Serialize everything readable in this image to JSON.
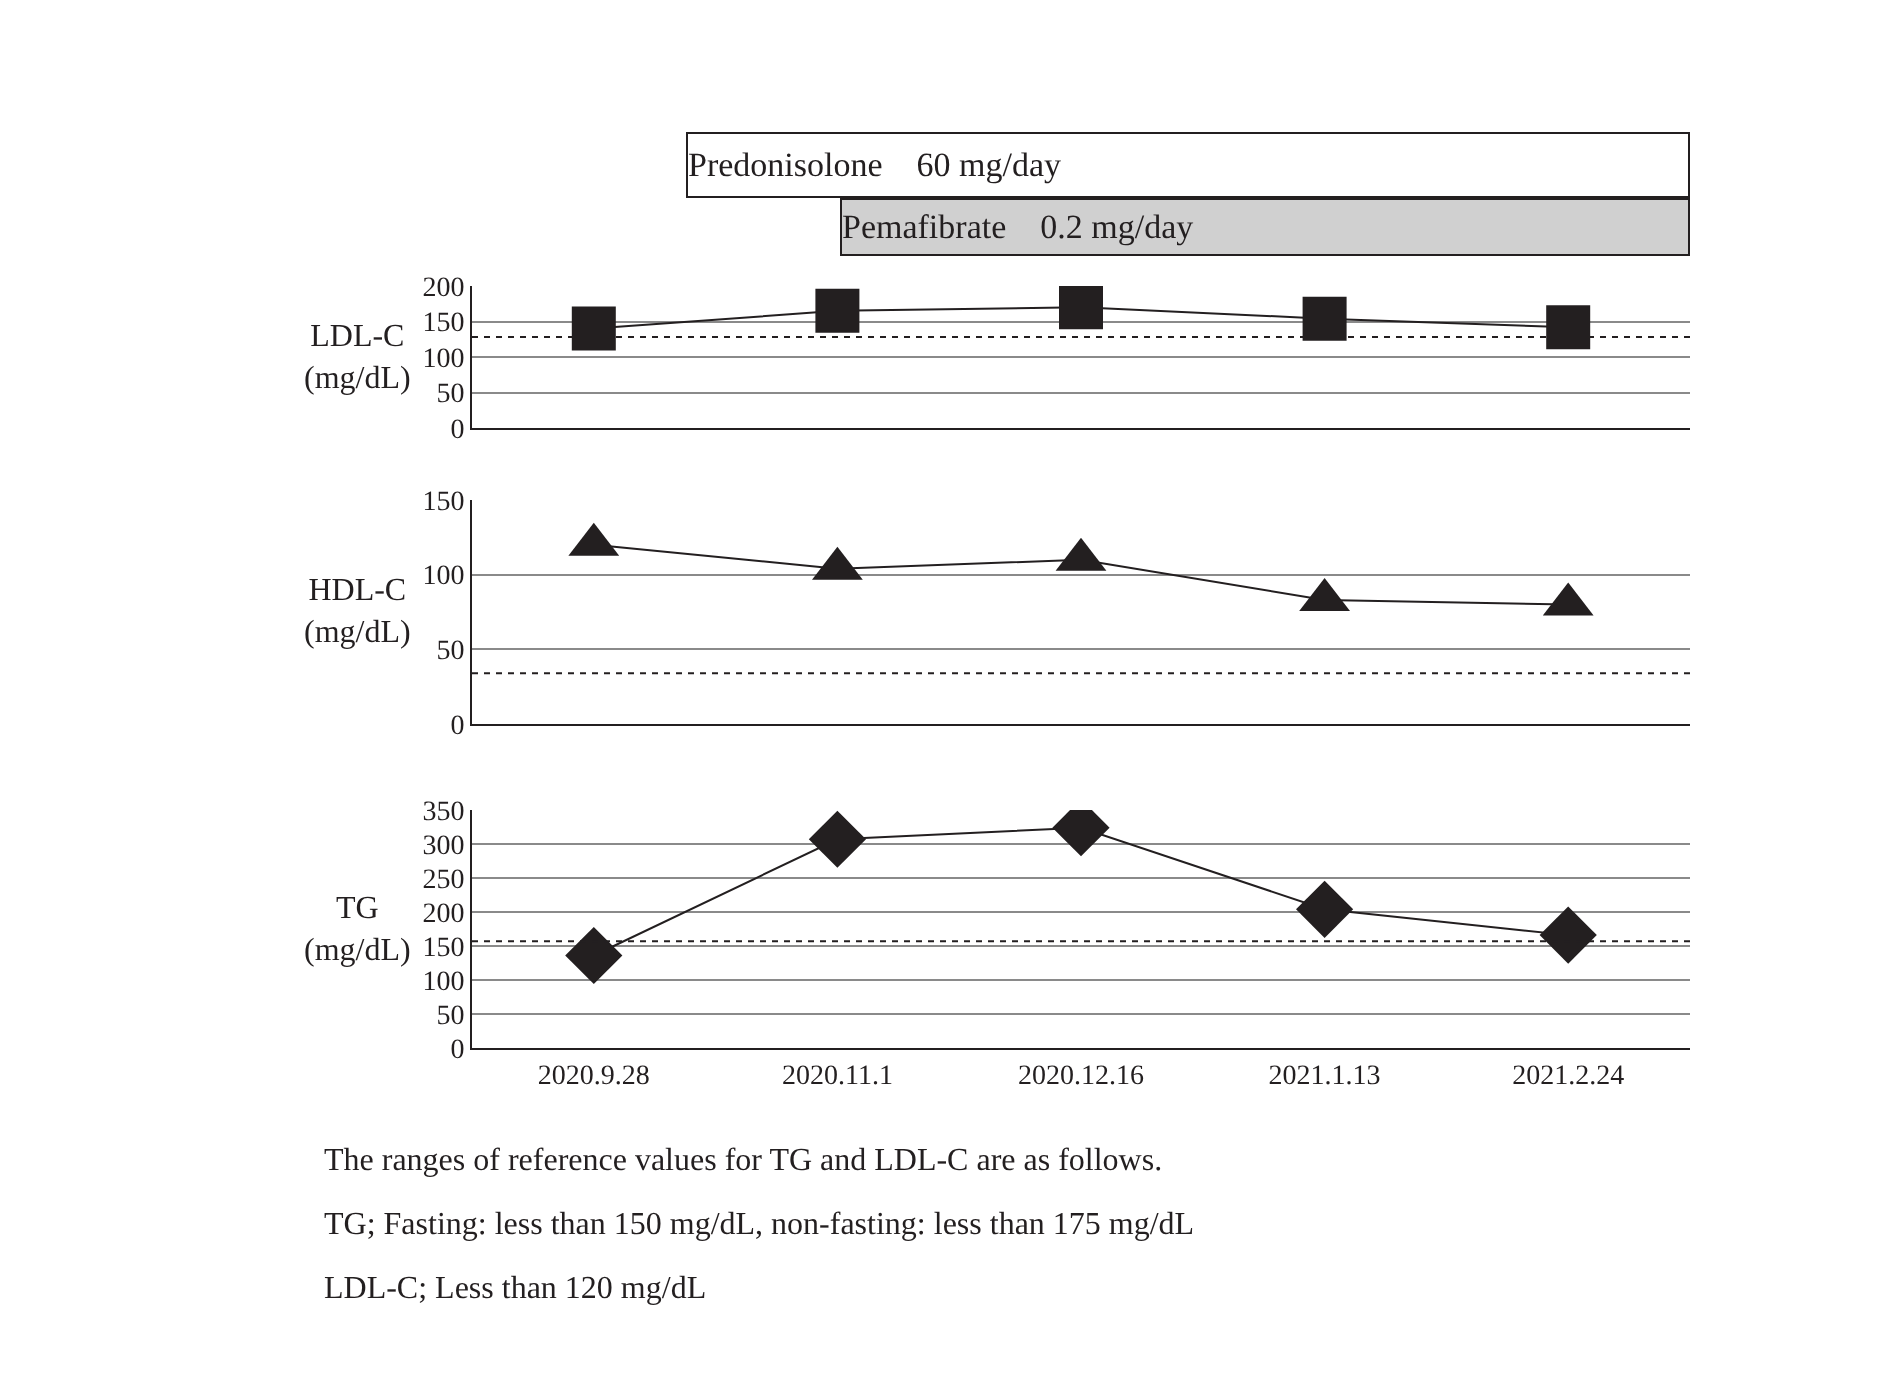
{
  "chart_data": [
    {
      "type": "line",
      "categories": [
        "2020.9.28",
        "2020.11.1",
        "2020.12.16",
        "2021.1.13",
        "2021.2.24"
      ],
      "values": [
        140,
        165,
        170,
        154,
        142
      ],
      "color": "#231f20",
      "marker": "square",
      "ylabel": "LDL-C\n(mg/dL)",
      "ylim": [
        0,
        200
      ],
      "yticks": [
        0,
        50,
        100,
        150,
        200
      ],
      "grid": "y",
      "tick_labels": "y",
      "ref_lines": [
        {
          "axis": "y",
          "value": 128,
          "line_style": "dotted"
        }
      ],
      "annotations": [
        "Predonisolone　60 mg/day",
        "Pemafibrate　0.2 mg/day"
      ]
    },
    {
      "type": "line",
      "categories": [
        "2020.9.28",
        "2020.11.1",
        "2020.12.16",
        "2021.1.13",
        "2021.2.24"
      ],
      "values": [
        120,
        104,
        110,
        83,
        80
      ],
      "color": "#231f20",
      "marker": "triangle",
      "ylabel": "HDL-C\n(mg/dL)",
      "ylim": [
        0,
        150
      ],
      "yticks": [
        0,
        50,
        100,
        150
      ],
      "grid": "y",
      "tick_labels": "y",
      "ref_lines": [
        {
          "axis": "y",
          "value": 34,
          "line_style": "dotted"
        }
      ]
    },
    {
      "type": "line",
      "categories": [
        "2020.9.28",
        "2020.11.1",
        "2020.12.16",
        "2021.1.13",
        "2021.2.24"
      ],
      "values": [
        136,
        307,
        324,
        204,
        166
      ],
      "color": "#231f20",
      "marker": "diamond",
      "ylabel": "TG\n(mg/dL)",
      "ylim": [
        0,
        350
      ],
      "yticks": [
        0,
        50,
        100,
        150,
        200,
        250,
        300,
        350
      ],
      "grid": "y",
      "ref_lines": [
        {
          "axis": "y",
          "value": 157,
          "line_style": "dotted"
        }
      ],
      "annotations": [
        "The ranges of reference values for TG and LDL-C are as follows.",
        "TG; Fasting: less than 150 mg/dL, non-fasting: less than 175 mg/dL",
        "LDL-C; Less than 120 mg/dL"
      ]
    }
  ]
}
